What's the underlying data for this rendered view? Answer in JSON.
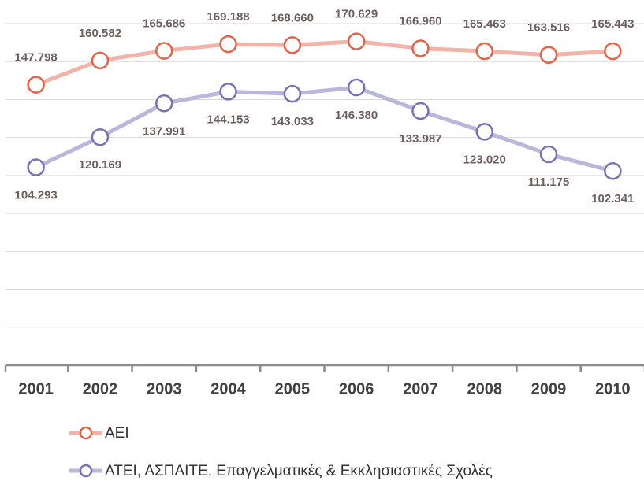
{
  "chart_data": {
    "type": "line",
    "categories": [
      "2001",
      "2002",
      "2003",
      "2004",
      "2005",
      "2006",
      "2007",
      "2008",
      "2009",
      "2010"
    ],
    "series": [
      {
        "name": "ΑΕΙ",
        "color": "#f2b3a8",
        "marker_color": "#e0634a",
        "values": [
          147798,
          160582,
          165686,
          169188,
          168660,
          170629,
          166960,
          165463,
          163516,
          165443
        ],
        "value_labels": [
          "147.798",
          "160.582",
          "165.686",
          "169.188",
          "168.660",
          "170.629",
          "166.960",
          "165.463",
          "163.516",
          "165.443"
        ]
      },
      {
        "name": "ΑΤΕΙ, ΑΣΠΑΙΤΕ, Επαγγελματικές & Εκκλησιαστικές Σχολές",
        "color": "#bab6dc",
        "marker_color": "#7b70b6",
        "values": [
          104293,
          120169,
          137991,
          144153,
          143033,
          146380,
          133987,
          123020,
          111175,
          102341
        ],
        "value_labels": [
          "104.293",
          "120.169",
          "137.991",
          "144.153",
          "143.033",
          "146.380",
          "133.987",
          "123.020",
          "111.175",
          "102.341"
        ]
      }
    ],
    "ylim": [
      0,
      180000
    ],
    "yticks": [
      0,
      20000,
      40000,
      60000,
      80000,
      100000,
      120000,
      140000,
      160000,
      180000
    ],
    "grid": true
  }
}
